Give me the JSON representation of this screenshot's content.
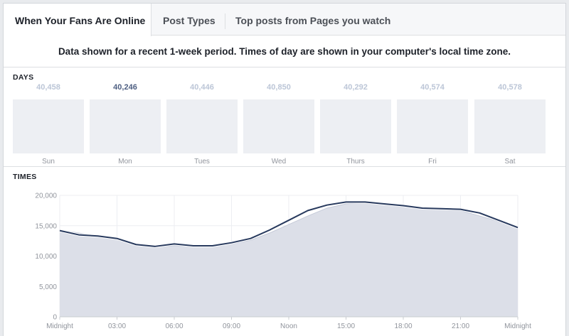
{
  "tabs": [
    {
      "label": "When Your Fans Are Online",
      "active": true
    },
    {
      "label": "Post Types",
      "active": false
    },
    {
      "label": "Top posts from Pages you watch",
      "active": false
    }
  ],
  "notice": "Data shown for a recent 1-week period. Times of day are shown in your computer's local time zone.",
  "days_section": {
    "label": "DAYS",
    "days": [
      {
        "name": "Sun",
        "count": "40,458",
        "highlighted": false
      },
      {
        "name": "Mon",
        "count": "40,246",
        "highlighted": true
      },
      {
        "name": "Tues",
        "count": "40,446",
        "highlighted": false
      },
      {
        "name": "Wed",
        "count": "40,850",
        "highlighted": false
      },
      {
        "name": "Thurs",
        "count": "40,292",
        "highlighted": false
      },
      {
        "name": "Fri",
        "count": "40,574",
        "highlighted": false
      },
      {
        "name": "Sat",
        "count": "40,578",
        "highlighted": false
      }
    ]
  },
  "times_section": {
    "label": "TIMES"
  },
  "colors": {
    "highlight_line": "#283a5e",
    "area_fill": "#dcdfe8",
    "area_edge": "#c5cad8",
    "highlight_count": "#4e5f82",
    "muted_count": "#bcc6d7"
  },
  "chart_data": {
    "type": "area",
    "x_ticks": [
      "Midnight",
      "03:00",
      "06:00",
      "09:00",
      "Noon",
      "15:00",
      "18:00",
      "21:00",
      "Midnight"
    ],
    "y_ticks": [
      "20,000",
      "15,000",
      "10,000",
      "5,000",
      "0"
    ],
    "ylim": [
      0,
      20000
    ],
    "xlim": [
      0,
      24
    ],
    "grid": true,
    "series": [
      {
        "role": "week-average-area",
        "x": [
          0,
          1,
          2,
          3,
          4,
          5,
          6,
          7,
          8,
          9,
          10,
          11,
          12,
          13,
          14,
          15,
          16,
          17,
          18,
          19,
          20,
          21,
          22,
          23,
          24
        ],
        "values": [
          14300,
          13800,
          13300,
          12800,
          11800,
          11500,
          11700,
          11600,
          11600,
          12000,
          12600,
          13800,
          15200,
          16600,
          17900,
          18600,
          18800,
          18500,
          18100,
          17800,
          17600,
          17500,
          16600,
          15700,
          14700
        ]
      },
      {
        "role": "selected-day-line",
        "x": [
          0,
          1,
          2,
          3,
          4,
          5,
          6,
          7,
          8,
          9,
          10,
          11,
          12,
          13,
          14,
          15,
          16,
          17,
          18,
          19,
          20,
          21,
          22,
          23,
          24
        ],
        "values": [
          14200,
          13500,
          13300,
          12900,
          11900,
          11600,
          12000,
          11700,
          11700,
          12200,
          12900,
          14300,
          15900,
          17500,
          18400,
          18900,
          18900,
          18600,
          18300,
          17900,
          17800,
          17700,
          17100,
          15900,
          14700
        ]
      }
    ]
  }
}
